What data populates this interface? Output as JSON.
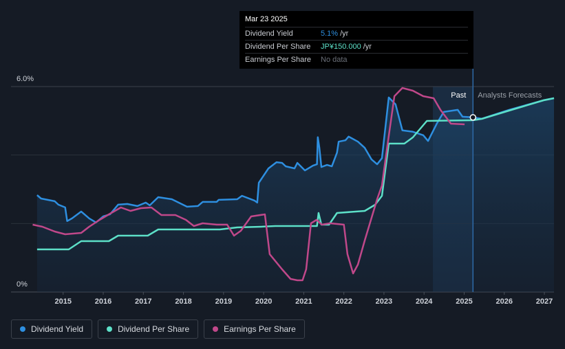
{
  "chart_data": {
    "type": "line",
    "xlim": [
      2013.7,
      2027.24
    ],
    "xticks": [
      2015,
      2016,
      2017,
      2018,
      2019,
      2020,
      2021,
      2022,
      2023,
      2024,
      2025,
      2026,
      2027
    ],
    "ylim": [
      0,
      6
    ],
    "yticks": [
      {
        "value": 0,
        "label": "0%"
      },
      {
        "value": 6,
        "label": "6.0%"
      }
    ],
    "ygrid": [
      2,
      4
    ],
    "y2lim": [
      0,
      179.4
    ],
    "highlight": [
      2024.22,
      2025.22
    ],
    "past_label": "Past",
    "forecast_label": "Analysts Forecasts",
    "series": [
      {
        "name": "Dividend Yield",
        "color": "#2e8fe0",
        "area": true,
        "x": [
          2014.35,
          2014.45,
          2014.79,
          2014.88,
          2015.05,
          2015.1,
          2015.22,
          2015.45,
          2015.65,
          2015.82,
          2016.0,
          2016.17,
          2016.37,
          2016.6,
          2016.85,
          2017.06,
          2017.16,
          2017.37,
          2017.71,
          2017.88,
          2018.09,
          2018.36,
          2018.48,
          2018.83,
          2018.88,
          2019.34,
          2019.46,
          2019.77,
          2019.84,
          2019.88,
          2020.12,
          2020.32,
          2020.46,
          2020.55,
          2020.77,
          2020.84,
          2021.03,
          2021.23,
          2021.33,
          2021.35,
          2021.39,
          2021.44,
          2021.58,
          2021.7,
          2021.83,
          2021.87,
          2022.04,
          2022.12,
          2022.35,
          2022.52,
          2022.69,
          2022.83,
          2022.95,
          2023.12,
          2023.29,
          2023.46,
          2023.72,
          2023.98,
          2024.1,
          2024.32,
          2024.49,
          2024.84,
          2024.96,
          2025.22,
          2025.44,
          2026.12,
          2026.98,
          2027.24
        ],
        "values": [
          2.83,
          2.73,
          2.65,
          2.55,
          2.47,
          2.07,
          2.15,
          2.35,
          2.15,
          2.03,
          2.21,
          2.27,
          2.55,
          2.57,
          2.51,
          2.61,
          2.53,
          2.77,
          2.71,
          2.61,
          2.49,
          2.51,
          2.63,
          2.63,
          2.69,
          2.71,
          2.81,
          2.67,
          2.61,
          3.19,
          3.61,
          3.79,
          3.77,
          3.67,
          3.61,
          3.77,
          3.55,
          3.69,
          3.73,
          4.52,
          4.21,
          3.65,
          3.71,
          3.67,
          4.07,
          4.39,
          4.43,
          4.54,
          4.39,
          4.21,
          3.87,
          3.73,
          3.91,
          5.68,
          5.48,
          4.72,
          4.68,
          4.58,
          4.41,
          4.92,
          5.26,
          5.32,
          5.12,
          5.1,
          5.06,
          5.32,
          5.6,
          5.66
        ]
      },
      {
        "name": "Dividend Per Share",
        "color": "#5de0c8",
        "axis": "y2",
        "x": [
          2014.35,
          2015.14,
          2015.45,
          2016.14,
          2016.37,
          2017.11,
          2017.37,
          2018.91,
          2019.34,
          2019.94,
          2020.29,
          2021.23,
          2021.33,
          2021.37,
          2021.44,
          2021.63,
          2021.83,
          2022.52,
          2022.78,
          2022.95,
          2023.12,
          2023.51,
          2023.72,
          2024.07,
          2025.22,
          2025.44,
          2026.12,
          2026.98,
          2027.24
        ],
        "values": [
          37.2,
          37.2,
          44.4,
          44.4,
          49.2,
          49.2,
          54.6,
          54.6,
          56.4,
          57,
          57.6,
          57.6,
          57.6,
          69,
          58.8,
          58.8,
          69,
          70.8,
          76.2,
          84,
          129.6,
          129.6,
          135,
          149.4,
          150,
          151.2,
          158.4,
          167.4,
          169.2
        ]
      },
      {
        "name": "Earnings Per Share",
        "color": "#c0488a",
        "axis": "y2",
        "x": [
          2014.24,
          2014.48,
          2014.79,
          2015.05,
          2015.45,
          2015.65,
          2015.91,
          2016.17,
          2016.44,
          2016.68,
          2016.94,
          2017.2,
          2017.45,
          2017.8,
          2018.06,
          2018.26,
          2018.48,
          2018.83,
          2019.09,
          2019.26,
          2019.43,
          2019.69,
          2020.03,
          2020.15,
          2020.46,
          2020.67,
          2020.84,
          2020.97,
          2021.06,
          2021.18,
          2021.32,
          2021.45,
          2021.66,
          2022.0,
          2022.09,
          2022.23,
          2022.35,
          2022.52,
          2022.83,
          2022.95,
          2023.09,
          2023.26,
          2023.46,
          2023.72,
          2023.98,
          2024.24,
          2024.41,
          2024.67,
          2025.01
        ],
        "values": [
          58.8,
          57,
          52.8,
          50.4,
          51.6,
          57,
          63,
          68.4,
          73.8,
          70.8,
          73.2,
          73.8,
          67.2,
          67.2,
          63,
          57.6,
          60,
          58.8,
          58.8,
          49.2,
          53.4,
          66,
          67.8,
          33,
          19.8,
          11.4,
          10.2,
          10.2,
          19.8,
          60,
          63,
          58.8,
          60,
          58.8,
          33,
          16.2,
          24,
          45,
          81,
          93,
          129,
          171,
          178.2,
          175.8,
          171,
          169.2,
          159,
          147,
          146.4
        ]
      }
    ],
    "tooltip": {
      "date": "Mar 23 2025",
      "rows": [
        {
          "label": "Dividend Yield",
          "value": "5.1%",
          "unit": "/yr"
        },
        {
          "label": "Dividend Per Share",
          "value": "JP¥150.000",
          "unit": "/yr"
        },
        {
          "label": "Earnings Per Share",
          "value": "No data"
        }
      ]
    }
  }
}
